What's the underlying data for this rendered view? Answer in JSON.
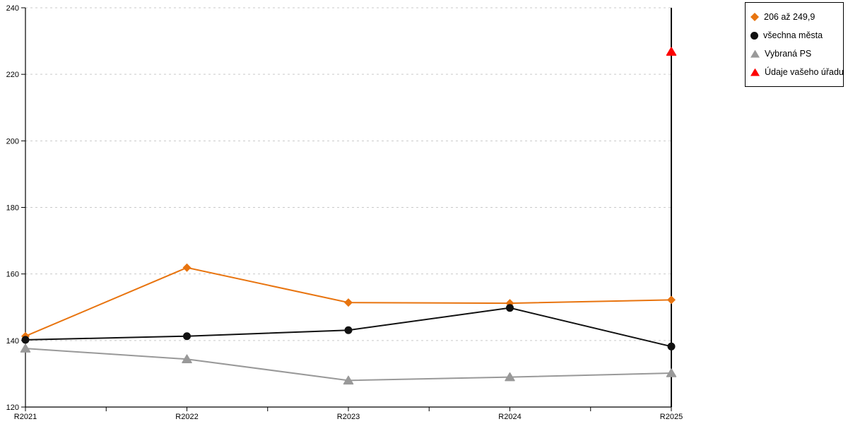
{
  "chart_data": {
    "type": "line",
    "categories": [
      "R2021",
      "R2022",
      "R2023",
      "R2024",
      "R2025"
    ],
    "series": [
      {
        "name": "206 až 249,9",
        "color": "#e8740f",
        "marker": "diamond",
        "values": [
          141.3,
          161.9,
          151.4,
          151.2,
          152.2
        ]
      },
      {
        "name": "všechna města",
        "color": "#111111",
        "marker": "circle",
        "values": [
          140.2,
          141.3,
          143.1,
          149.8,
          138.2
        ]
      },
      {
        "name": "Vybraná PS",
        "color": "#999999",
        "marker": "triangle",
        "values": [
          137.6,
          134.4,
          128.0,
          129.0,
          130.2
        ]
      },
      {
        "name": "Údaje vašeho úřadu",
        "color": "#fd0000",
        "marker": "triangle",
        "values": [
          null,
          null,
          null,
          null,
          226.8
        ]
      }
    ],
    "ylim": [
      120,
      240
    ],
    "ytick_step": 20,
    "ytick_labels": [
      "120",
      "140",
      "160",
      "180",
      "200",
      "220",
      "240"
    ],
    "grid": "horizontal-dotted",
    "grid_color": "#c9c9c9",
    "axis_color": "#000000",
    "legend_position": "top-right",
    "title": "",
    "xlabel": "",
    "ylabel": ""
  }
}
